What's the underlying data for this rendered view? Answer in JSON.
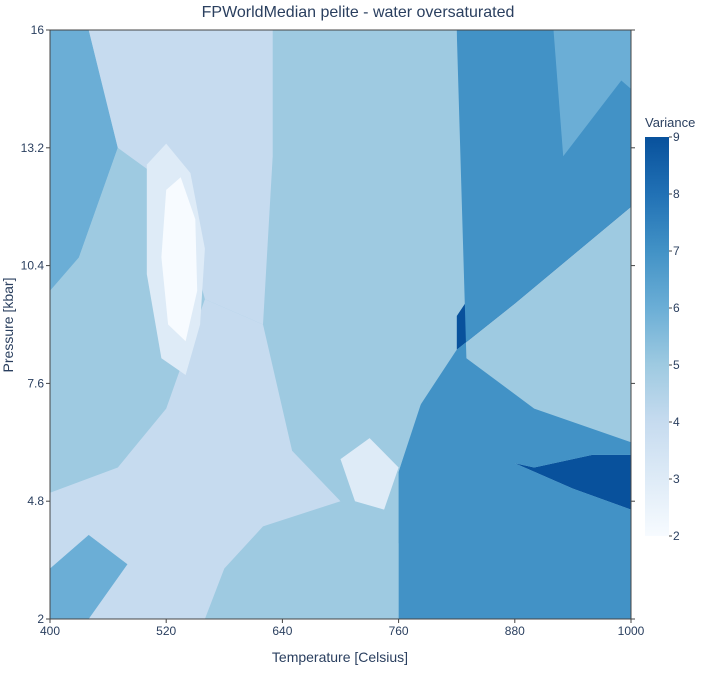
{
  "chart_data": {
    "type": "heatmap",
    "title": "FPWorldMedian pelite - water oversaturated",
    "xlabel": "Temperature [Celsius]",
    "ylabel": "Pressure [kbar]",
    "xlim": [
      400,
      1000
    ],
    "ylim": [
      2,
      16
    ],
    "xticks": [
      "400",
      "520",
      "640",
      "760",
      "880",
      "1000"
    ],
    "yticks": [
      "2",
      "4.8",
      "7.6",
      "10.4",
      "13.2",
      "16"
    ],
    "colorbar": {
      "title": "Variance",
      "range": [
        2,
        9
      ],
      "ticks": [
        "2",
        "3",
        "4",
        "5",
        "6",
        "7",
        "8",
        "9"
      ],
      "colors": [
        "#f7fbff",
        "#deebf7",
        "#c6dbef",
        "#9ecae1",
        "#6baed6",
        "#4292c6",
        "#2171b5",
        "#08519c"
      ]
    },
    "fields": [
      {
        "variance": 9,
        "points": [
          [
            820,
            8.4
          ],
          [
            880,
            9.5
          ],
          [
            1000,
            11.8
          ],
          [
            1000,
            14.6
          ],
          [
            990,
            14.8
          ],
          [
            930,
            13.0
          ],
          [
            820,
            9.2
          ]
        ]
      },
      {
        "variance": 9,
        "points": [
          [
            880,
            5.7
          ],
          [
            940,
            5.1
          ],
          [
            1000,
            4.6
          ],
          [
            1000,
            5.9
          ],
          [
            960,
            5.9
          ],
          [
            900,
            5.6
          ]
        ]
      },
      {
        "variance": 7,
        "points": [
          [
            820,
            16
          ],
          [
            1000,
            16
          ],
          [
            1000,
            11.8
          ],
          [
            880,
            9.5
          ],
          [
            820,
            8.4
          ],
          [
            780,
            7.0
          ],
          [
            760,
            5.5
          ],
          [
            760,
            2
          ],
          [
            1000,
            2
          ],
          [
            1000,
            4.6
          ],
          [
            940,
            5.1
          ],
          [
            880,
            5.7
          ],
          [
            900,
            5.6
          ],
          [
            960,
            5.9
          ],
          [
            1000,
            5.9
          ],
          [
            1000,
            6.2
          ],
          [
            900,
            7.0
          ],
          [
            830,
            8.2
          ]
        ]
      },
      {
        "variance": 6,
        "points": [
          [
            840,
            16
          ],
          [
            920,
            16
          ],
          [
            930,
            13.0
          ],
          [
            990,
            14.8
          ],
          [
            1000,
            14.6
          ],
          [
            1000,
            16
          ]
        ]
      },
      {
        "variance": 6,
        "points": [
          [
            770,
            11.2
          ],
          [
            800,
            12.0
          ],
          [
            820,
            9.2
          ],
          [
            790,
            7.6
          ],
          [
            760,
            8.4
          ]
        ]
      },
      {
        "variance": 6,
        "points": [
          [
            400,
            16
          ],
          [
            440,
            16
          ],
          [
            470,
            13.2
          ],
          [
            430,
            10.6
          ],
          [
            400,
            9.8
          ]
        ]
      },
      {
        "variance": 6,
        "points": [
          [
            400,
            2
          ],
          [
            440,
            2
          ],
          [
            480,
            3.3
          ],
          [
            440,
            4.0
          ],
          [
            400,
            3.2
          ]
        ]
      },
      {
        "variance": 5,
        "points": [
          [
            630,
            16
          ],
          [
            820,
            16
          ],
          [
            820,
            8.4
          ],
          [
            790,
            7.6
          ],
          [
            760,
            5.5
          ],
          [
            700,
            4.8
          ],
          [
            650,
            6.0
          ],
          [
            620,
            9.0
          ],
          [
            630,
            13.0
          ]
        ]
      },
      {
        "variance": 5,
        "points": [
          [
            400,
            7.6
          ],
          [
            430,
            10.6
          ],
          [
            470,
            13.2
          ],
          [
            530,
            12.2
          ],
          [
            560,
            9.6
          ],
          [
            520,
            7.0
          ],
          [
            470,
            5.6
          ],
          [
            400,
            5.0
          ]
        ]
      },
      {
        "variance": 5,
        "points": [
          [
            560,
            2
          ],
          [
            760,
            2
          ],
          [
            760,
            3.8
          ],
          [
            700,
            4.8
          ],
          [
            620,
            4.2
          ],
          [
            580,
            3.2
          ]
        ]
      },
      {
        "variance": 4,
        "points": [
          [
            440,
            16
          ],
          [
            630,
            16
          ],
          [
            630,
            13.0
          ],
          [
            620,
            9.0
          ],
          [
            560,
            9.6
          ],
          [
            530,
            12.2
          ],
          [
            470,
            13.2
          ]
        ]
      },
      {
        "variance": 4,
        "points": [
          [
            400,
            5.0
          ],
          [
            470,
            5.6
          ],
          [
            520,
            7.0
          ],
          [
            560,
            9.6
          ],
          [
            620,
            9.0
          ],
          [
            650,
            6.0
          ],
          [
            700,
            4.8
          ],
          [
            620,
            4.2
          ],
          [
            580,
            3.2
          ],
          [
            560,
            2
          ],
          [
            440,
            2
          ],
          [
            480,
            3.3
          ],
          [
            440,
            4.0
          ],
          [
            400,
            3.2
          ]
        ]
      },
      {
        "variance": 3,
        "points": [
          [
            500,
            12.8
          ],
          [
            520,
            13.3
          ],
          [
            545,
            12.6
          ],
          [
            560,
            10.8
          ],
          [
            555,
            9.0
          ],
          [
            540,
            7.8
          ],
          [
            515,
            8.2
          ],
          [
            500,
            10.2
          ]
        ]
      },
      {
        "variance": 3,
        "points": [
          [
            700,
            5.8
          ],
          [
            730,
            6.3
          ],
          [
            760,
            5.6
          ],
          [
            745,
            4.6
          ],
          [
            715,
            4.8
          ]
        ]
      },
      {
        "variance": 2,
        "points": [
          [
            520,
            12.2
          ],
          [
            535,
            12.5
          ],
          [
            550,
            11.5
          ],
          [
            552,
            9.8
          ],
          [
            540,
            8.6
          ],
          [
            522,
            9.0
          ],
          [
            515,
            10.6
          ]
        ]
      }
    ]
  }
}
